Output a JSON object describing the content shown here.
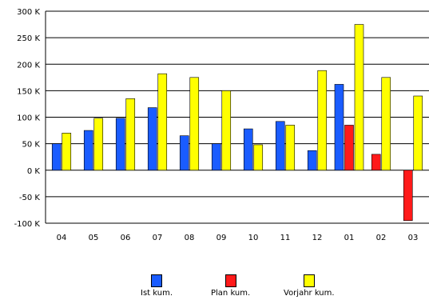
{
  "chart_data": {
    "type": "bar",
    "title": "",
    "xlabel": "",
    "ylabel": "",
    "ylim": [
      -100,
      300
    ],
    "yticks": [
      "-100 K",
      "-50 K",
      "0 K",
      "50 K",
      "100 K",
      "150 K",
      "200 K",
      "250 K",
      "300 K"
    ],
    "categories": [
      "04",
      "05",
      "06",
      "07",
      "08",
      "09",
      "10",
      "11",
      "12",
      "01",
      "02",
      "03"
    ],
    "series": [
      {
        "name": "Ist kum.",
        "color": "#1a5cff",
        "values": [
          50,
          75,
          98,
          118,
          65,
          50,
          78,
          92,
          37,
          162,
          null,
          null
        ]
      },
      {
        "name": "Plan kum.",
        "color": "#ff1a1a",
        "values": [
          null,
          null,
          null,
          null,
          null,
          null,
          null,
          null,
          null,
          85,
          30,
          -95
        ]
      },
      {
        "name": "Vorjahr kum.",
        "color": "#ffff00",
        "values": [
          70,
          98,
          135,
          182,
          175,
          150,
          48,
          85,
          188,
          275,
          175,
          140
        ]
      }
    ],
    "grid": true,
    "legend": "bottom"
  }
}
